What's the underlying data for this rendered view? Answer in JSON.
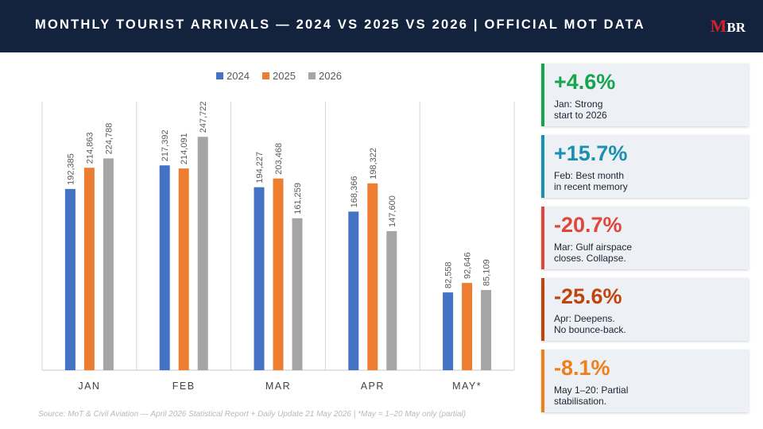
{
  "header": {
    "title": "MONTHLY TOURIST ARRIVALS  —  2024 VS 2025 VS 2026  |  OFFICIAL MOT DATA",
    "logo_text": "MBR"
  },
  "chart_data": {
    "type": "bar",
    "title": "",
    "xlabel": "",
    "ylabel": "",
    "categories": [
      "JAN",
      "FEB",
      "MAR",
      "APR",
      "MAY*"
    ],
    "series": [
      {
        "name": "2024",
        "color": "#4472c4",
        "values": [
          192385,
          217392,
          194227,
          168366,
          82558
        ]
      },
      {
        "name": "2025",
        "color": "#ed7d31",
        "values": [
          214863,
          214091,
          203468,
          198322,
          92646
        ]
      },
      {
        "name": "2026",
        "color": "#a5a5a5",
        "values": [
          224788,
          247722,
          161259,
          147600,
          85109
        ]
      }
    ],
    "ylim": [
      0,
      285000
    ],
    "legend": "top-center",
    "grid": false,
    "data_labels": true
  },
  "source": "Source: MoT & Civil Aviation — April 2026 Statistical Report + Daily Update 21 May 2026  |  *May = 1–20 May only (partial)",
  "cards": [
    {
      "value": "+4.6%",
      "note": "Jan: Strong\nstart to 2026",
      "color": "#17a44e"
    },
    {
      "value": "+15.7%",
      "note": "Feb: Best month\nin recent memory",
      "color": "#1a8fb0"
    },
    {
      "value": "-20.7%",
      "note": "Mar: Gulf airspace\ncloses. Collapse.",
      "color": "#e0473a"
    },
    {
      "value": "-25.6%",
      "note": "Apr: Deepens.\nNo bounce-back.",
      "color": "#c1440e"
    },
    {
      "value": "-8.1%",
      "note": "May 1–20: Partial\nstabilisation.",
      "color": "#ef7f1a"
    }
  ]
}
